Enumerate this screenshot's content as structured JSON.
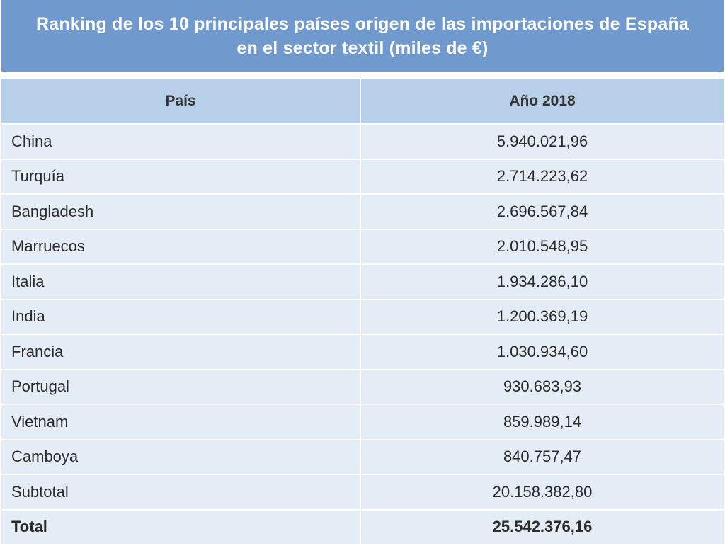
{
  "title": {
    "line1": "Ranking de los 10 principales países origen de las importaciones de España",
    "line2": "en el sector textil (miles de €)"
  },
  "table": {
    "headers": {
      "country": "País",
      "year": "Año 2018"
    },
    "rows": [
      {
        "country": "China",
        "value": "5.940.021,96"
      },
      {
        "country": "Turquía",
        "value": "2.714.223,62"
      },
      {
        "country": "Bangladesh",
        "value": "2.696.567,84"
      },
      {
        "country": "Marruecos",
        "value": "2.010.548,95"
      },
      {
        "country": "Italia",
        "value": "1.934.286,10"
      },
      {
        "country": "India",
        "value": "1.200.369,19"
      },
      {
        "country": "Francia",
        "value": "1.030.934,60"
      },
      {
        "country": "Portugal",
        "value": "930.683,93"
      },
      {
        "country": "Vietnam",
        "value": "859.989,14"
      },
      {
        "country": "Camboya",
        "value": "840.757,47"
      }
    ],
    "subtotal": {
      "label": "Subtotal",
      "value": "20.158.382,80"
    },
    "total": {
      "label": "Total",
      "value": "25.542.376,16"
    }
  },
  "colors": {
    "title_background": "#7099cd",
    "header_background": "#b7cfe8",
    "row_background": "#e4ecf6",
    "title_text": "#ffffff",
    "body_text": "#2b2b2b"
  }
}
